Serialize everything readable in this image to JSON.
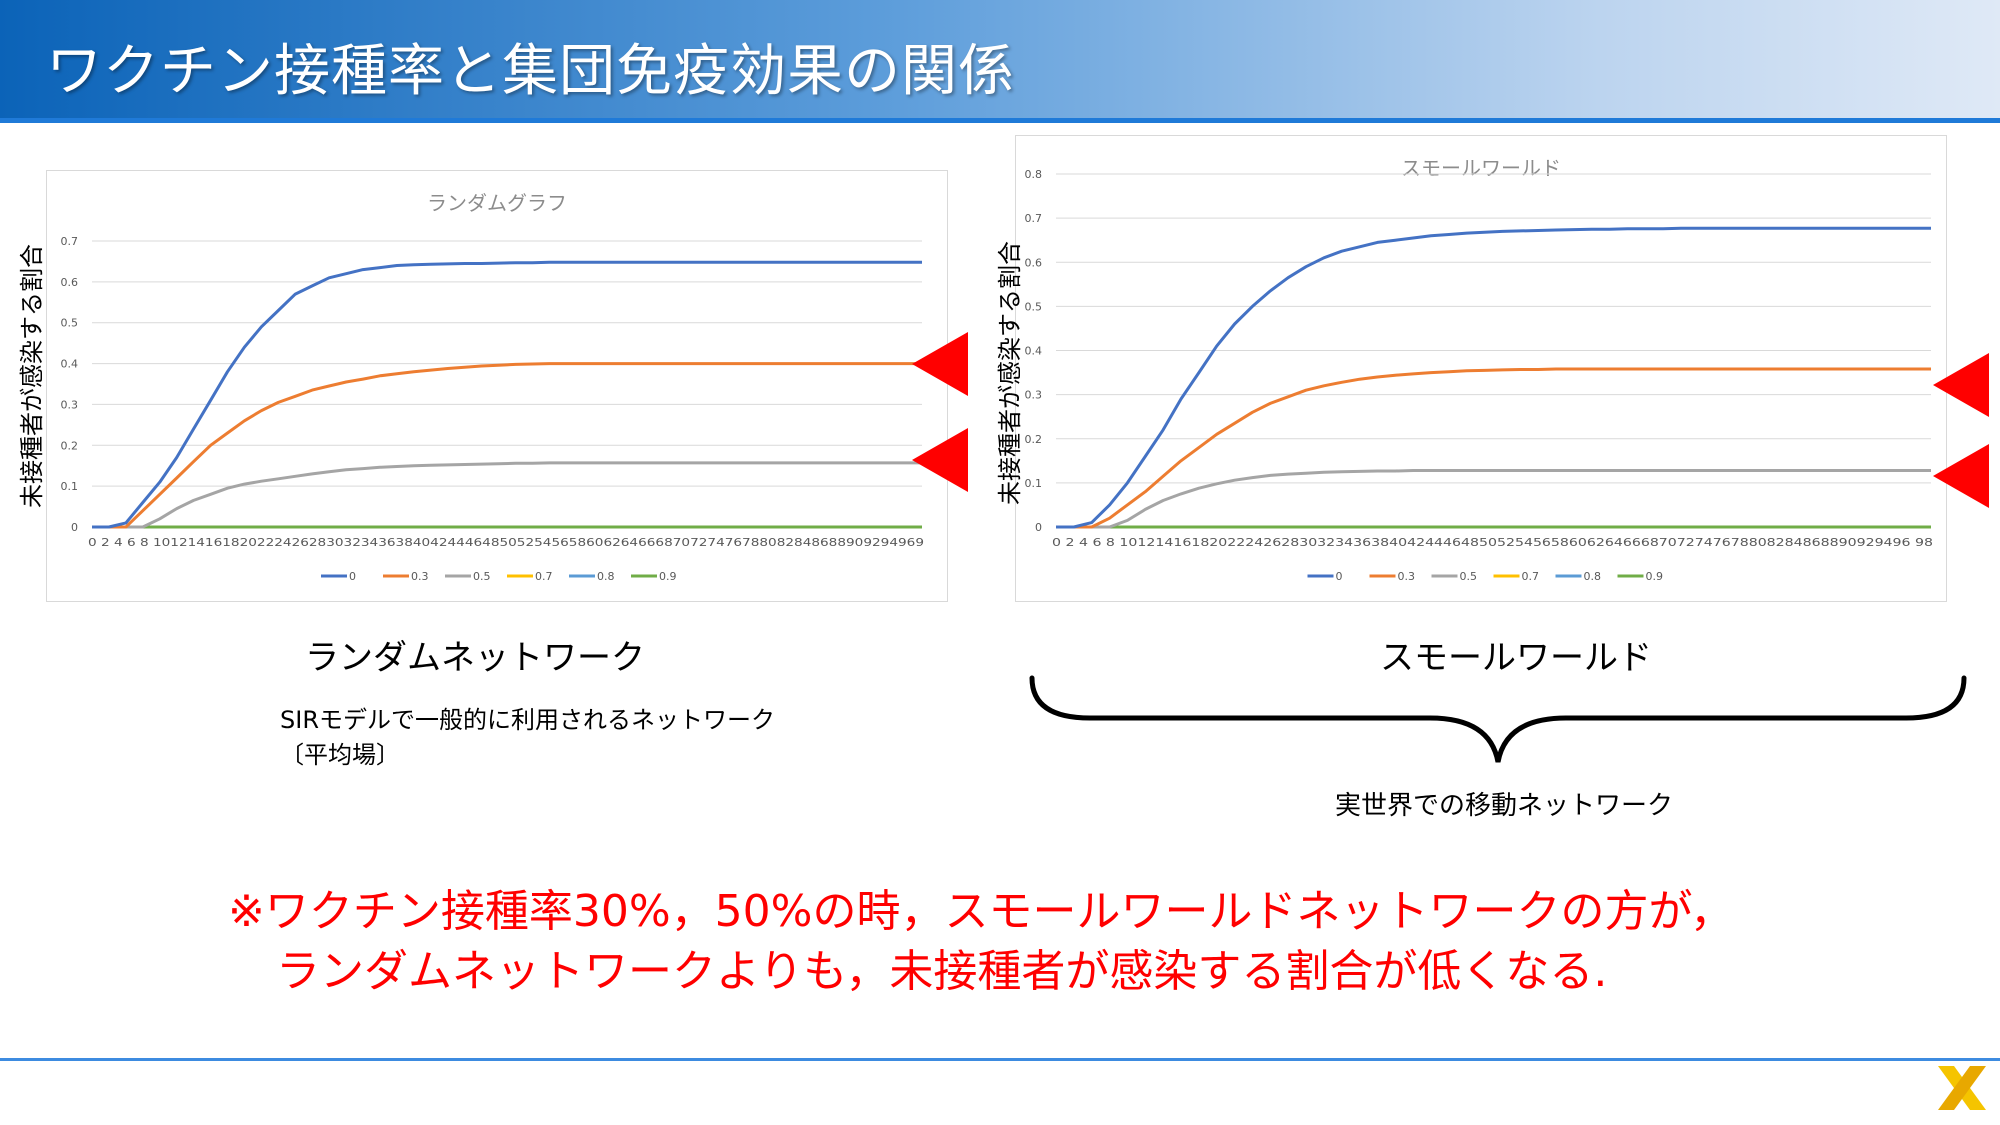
{
  "header": {
    "title": "ワクチン接種率と集団免疫効果の関係"
  },
  "y_axis_label": "未接種者が感染する割合",
  "captions": {
    "left_title": "ランダムネットワーク",
    "left_desc_line1": "SIRモデルで一般的に利用されるネットワーク",
    "left_desc_line2": "〔平均場〕",
    "right_title": "スモールワールド",
    "right_desc": "実世界での移動ネットワーク"
  },
  "note": {
    "line1": "※ワクチン接種率30%，50%の時，スモールワールドネットワークの方が，",
    "line2": "ランダムネットワークよりも，未接種者が感染する割合が低くなる."
  },
  "colors": {
    "accent": "#ff0000",
    "header": "#0b63b8"
  },
  "icons": {
    "logo": "x-logo-icon",
    "marker": "red-triangle-marker"
  },
  "chart_data": [
    {
      "type": "line",
      "title": "ランダムグラフ",
      "xlabel": "",
      "ylabel": "未接種者が感染する割合",
      "x": [
        0,
        2,
        4,
        6,
        8,
        10,
        12,
        14,
        16,
        18,
        20,
        22,
        24,
        26,
        28,
        30,
        32,
        34,
        36,
        38,
        40,
        42,
        44,
        46,
        48,
        50,
        52,
        54,
        56,
        58,
        60,
        62,
        64,
        66,
        68,
        70,
        72,
        74,
        76,
        78,
        80,
        82,
        84,
        86,
        88,
        90,
        92,
        94,
        96,
        98
      ],
      "x_tick_text": "0 2 4 6 8 10121416182022242628303234363840424446485052545658606264666870727476788082848688909294969",
      "ylim": [
        0,
        0.7
      ],
      "y_ticks": [
        "0",
        "0.1",
        "0.2",
        "0.3",
        "0.4",
        "0.5",
        "0.6",
        "0.7"
      ],
      "legend": [
        "0",
        "0.3",
        "0.5",
        "0.7",
        "0.8",
        "0.9"
      ],
      "legend_position": "bottom",
      "series": [
        {
          "name": "0",
          "color": "#4472c4",
          "values": [
            0,
            0,
            0.01,
            0.06,
            0.11,
            0.17,
            0.24,
            0.31,
            0.38,
            0.44,
            0.49,
            0.53,
            0.57,
            0.59,
            0.61,
            0.62,
            0.63,
            0.635,
            0.64,
            0.642,
            0.643,
            0.644,
            0.645,
            0.645,
            0.646,
            0.647,
            0.647,
            0.648,
            0.648,
            0.648,
            0.648,
            0.648,
            0.648,
            0.648,
            0.648,
            0.648,
            0.648,
            0.648,
            0.648,
            0.648,
            0.648,
            0.648,
            0.648,
            0.648,
            0.648,
            0.648,
            0.648,
            0.648,
            0.648,
            0.648
          ]
        },
        {
          "name": "0.3",
          "color": "#ed7d31",
          "values": [
            0,
            0,
            0,
            0.04,
            0.08,
            0.12,
            0.16,
            0.2,
            0.23,
            0.26,
            0.285,
            0.305,
            0.32,
            0.335,
            0.345,
            0.355,
            0.362,
            0.37,
            0.375,
            0.38,
            0.384,
            0.388,
            0.391,
            0.394,
            0.396,
            0.398,
            0.399,
            0.4,
            0.4,
            0.4,
            0.4,
            0.4,
            0.4,
            0.4,
            0.4,
            0.4,
            0.4,
            0.4,
            0.4,
            0.4,
            0.4,
            0.4,
            0.4,
            0.4,
            0.4,
            0.4,
            0.4,
            0.4,
            0.4,
            0.4
          ]
        },
        {
          "name": "0.5",
          "color": "#a5a5a5",
          "values": [
            0,
            0,
            0,
            0,
            0.02,
            0.045,
            0.065,
            0.08,
            0.095,
            0.105,
            0.112,
            0.118,
            0.124,
            0.13,
            0.135,
            0.14,
            0.143,
            0.146,
            0.148,
            0.15,
            0.151,
            0.152,
            0.153,
            0.154,
            0.155,
            0.156,
            0.156,
            0.157,
            0.157,
            0.157,
            0.157,
            0.157,
            0.157,
            0.157,
            0.157,
            0.157,
            0.157,
            0.157,
            0.157,
            0.157,
            0.157,
            0.157,
            0.157,
            0.157,
            0.157,
            0.157,
            0.157,
            0.157,
            0.157,
            0.157
          ]
        },
        {
          "name": "0.7",
          "color": "#ffc000",
          "values": [
            0,
            0,
            0,
            0,
            0,
            0,
            0,
            0,
            0,
            0,
            0,
            0,
            0,
            0,
            0,
            0,
            0,
            0,
            0,
            0,
            0,
            0,
            0,
            0,
            0,
            0,
            0,
            0,
            0,
            0,
            0,
            0,
            0,
            0,
            0,
            0,
            0,
            0,
            0,
            0,
            0,
            0,
            0,
            0,
            0,
            0,
            0,
            0,
            0,
            0
          ]
        },
        {
          "name": "0.8",
          "color": "#5b9bd5",
          "values": [
            0,
            0,
            0,
            0,
            0,
            0,
            0,
            0,
            0,
            0,
            0,
            0,
            0,
            0,
            0,
            0,
            0,
            0,
            0,
            0,
            0,
            0,
            0,
            0,
            0,
            0,
            0,
            0,
            0,
            0,
            0,
            0,
            0,
            0,
            0,
            0,
            0,
            0,
            0,
            0,
            0,
            0,
            0,
            0,
            0,
            0,
            0,
            0,
            0,
            0
          ]
        },
        {
          "name": "0.9",
          "color": "#70ad47",
          "values": [
            0,
            0,
            0,
            0,
            0,
            0,
            0,
            0,
            0,
            0,
            0,
            0,
            0,
            0,
            0,
            0,
            0,
            0,
            0,
            0,
            0,
            0,
            0,
            0,
            0,
            0,
            0,
            0,
            0,
            0,
            0,
            0,
            0,
            0,
            0,
            0,
            0,
            0,
            0,
            0,
            0,
            0,
            0,
            0,
            0,
            0,
            0,
            0,
            0,
            0
          ]
        }
      ]
    },
    {
      "type": "line",
      "title": "スモールワールド",
      "xlabel": "",
      "ylabel": "未接種者が感染する割合",
      "x": [
        0,
        2,
        4,
        6,
        8,
        10,
        12,
        14,
        16,
        18,
        20,
        22,
        24,
        26,
        28,
        30,
        32,
        34,
        36,
        38,
        40,
        42,
        44,
        46,
        48,
        50,
        52,
        54,
        56,
        58,
        60,
        62,
        64,
        66,
        68,
        70,
        72,
        74,
        76,
        78,
        80,
        82,
        84,
        86,
        88,
        90,
        92,
        94,
        96,
        98
      ],
      "x_tick_text": "0 2 4 6 8 1012141618202224262830323436384042444648505254565860626466687072747678808284868890929496 98",
      "ylim": [
        0,
        0.8
      ],
      "y_ticks": [
        "0",
        "0.1",
        "0.2",
        "0.3",
        "0.4",
        "0.5",
        "0.6",
        "0.7",
        "0.8"
      ],
      "legend": [
        "0",
        "0.3",
        "0.5",
        "0.7",
        "0.8",
        "0.9"
      ],
      "legend_position": "bottom",
      "series": [
        {
          "name": "0",
          "color": "#4472c4",
          "values": [
            0,
            0,
            0.01,
            0.05,
            0.1,
            0.16,
            0.22,
            0.29,
            0.35,
            0.41,
            0.46,
            0.5,
            0.535,
            0.565,
            0.59,
            0.61,
            0.625,
            0.635,
            0.645,
            0.65,
            0.655,
            0.66,
            0.663,
            0.666,
            0.668,
            0.67,
            0.671,
            0.672,
            0.673,
            0.674,
            0.675,
            0.675,
            0.676,
            0.676,
            0.676,
            0.677,
            0.677,
            0.677,
            0.677,
            0.677,
            0.677,
            0.677,
            0.677,
            0.677,
            0.677,
            0.677,
            0.677,
            0.677,
            0.677,
            0.677
          ]
        },
        {
          "name": "0.3",
          "color": "#ed7d31",
          "values": [
            0,
            0,
            0,
            0.02,
            0.05,
            0.08,
            0.115,
            0.15,
            0.18,
            0.21,
            0.235,
            0.26,
            0.28,
            0.295,
            0.31,
            0.32,
            0.328,
            0.335,
            0.34,
            0.344,
            0.347,
            0.35,
            0.352,
            0.354,
            0.355,
            0.356,
            0.357,
            0.357,
            0.358,
            0.358,
            0.358,
            0.358,
            0.358,
            0.358,
            0.358,
            0.358,
            0.358,
            0.358,
            0.358,
            0.358,
            0.358,
            0.358,
            0.358,
            0.358,
            0.358,
            0.358,
            0.358,
            0.358,
            0.358,
            0.358
          ]
        },
        {
          "name": "0.5",
          "color": "#a5a5a5",
          "values": [
            0,
            0,
            0,
            0,
            0.015,
            0.04,
            0.06,
            0.075,
            0.088,
            0.098,
            0.106,
            0.112,
            0.117,
            0.12,
            0.122,
            0.124,
            0.125,
            0.126,
            0.127,
            0.127,
            0.128,
            0.128,
            0.128,
            0.128,
            0.128,
            0.128,
            0.128,
            0.128,
            0.128,
            0.128,
            0.128,
            0.128,
            0.128,
            0.128,
            0.128,
            0.128,
            0.128,
            0.128,
            0.128,
            0.128,
            0.128,
            0.128,
            0.128,
            0.128,
            0.128,
            0.128,
            0.128,
            0.128,
            0.128,
            0.128
          ]
        },
        {
          "name": "0.7",
          "color": "#ffc000",
          "values": [
            0,
            0,
            0,
            0,
            0,
            0,
            0,
            0,
            0,
            0,
            0,
            0,
            0,
            0,
            0,
            0,
            0,
            0,
            0,
            0,
            0,
            0,
            0,
            0,
            0,
            0,
            0,
            0,
            0,
            0,
            0,
            0,
            0,
            0,
            0,
            0,
            0,
            0,
            0,
            0,
            0,
            0,
            0,
            0,
            0,
            0,
            0,
            0,
            0,
            0
          ]
        },
        {
          "name": "0.8",
          "color": "#5b9bd5",
          "values": [
            0,
            0,
            0,
            0,
            0,
            0,
            0,
            0,
            0,
            0,
            0,
            0,
            0,
            0,
            0,
            0,
            0,
            0,
            0,
            0,
            0,
            0,
            0,
            0,
            0,
            0,
            0,
            0,
            0,
            0,
            0,
            0,
            0,
            0,
            0,
            0,
            0,
            0,
            0,
            0,
            0,
            0,
            0,
            0,
            0,
            0,
            0,
            0,
            0,
            0
          ]
        },
        {
          "name": "0.9",
          "color": "#70ad47",
          "values": [
            0,
            0,
            0,
            0,
            0,
            0,
            0,
            0,
            0,
            0,
            0,
            0,
            0,
            0,
            0,
            0,
            0,
            0,
            0,
            0,
            0,
            0,
            0,
            0,
            0,
            0,
            0,
            0,
            0,
            0,
            0,
            0,
            0,
            0,
            0,
            0,
            0,
            0,
            0,
            0,
            0,
            0,
            0,
            0,
            0,
            0,
            0,
            0,
            0,
            0
          ]
        }
      ]
    }
  ]
}
